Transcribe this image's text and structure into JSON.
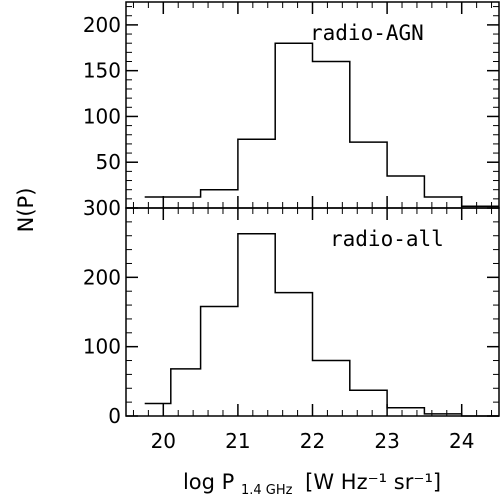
{
  "chart_data": [
    {
      "type": "histogram",
      "panel": "top",
      "label": "radio-AGN",
      "bin_edges": [
        19.75,
        20.5,
        21.0,
        21.5,
        22.0,
        22.5,
        23.0,
        23.5,
        24.0,
        24.5
      ],
      "values": [
        12,
        20,
        75,
        180,
        160,
        72,
        35,
        12,
        2
      ],
      "ylim": [
        0,
        225
      ],
      "yticks": [
        50,
        100,
        150,
        200
      ],
      "xlim": [
        19.5,
        24.5
      ],
      "xticks": [
        20,
        21,
        22,
        23,
        24
      ]
    },
    {
      "type": "histogram",
      "panel": "bottom",
      "label": "radio-all",
      "bin_edges": [
        19.75,
        20.1,
        20.5,
        21.0,
        21.5,
        22.0,
        22.5,
        23.0,
        23.5,
        24.0,
        24.5
      ],
      "values": [
        18,
        68,
        158,
        263,
        178,
        80,
        37,
        12,
        3,
        0
      ],
      "ylim": [
        0,
        300
      ],
      "yticks": [
        0,
        100,
        200,
        300
      ],
      "xlim": [
        19.5,
        24.5
      ],
      "xticks": [
        20,
        21,
        22,
        23,
        24
      ]
    }
  ],
  "axes": {
    "ylabel": "N(P)",
    "xlabel_prefix": "log P",
    "xlabel_sub": "1.4 GHz",
    "xlabel_unit": "[W Hz⁻¹ sr⁻¹]"
  }
}
